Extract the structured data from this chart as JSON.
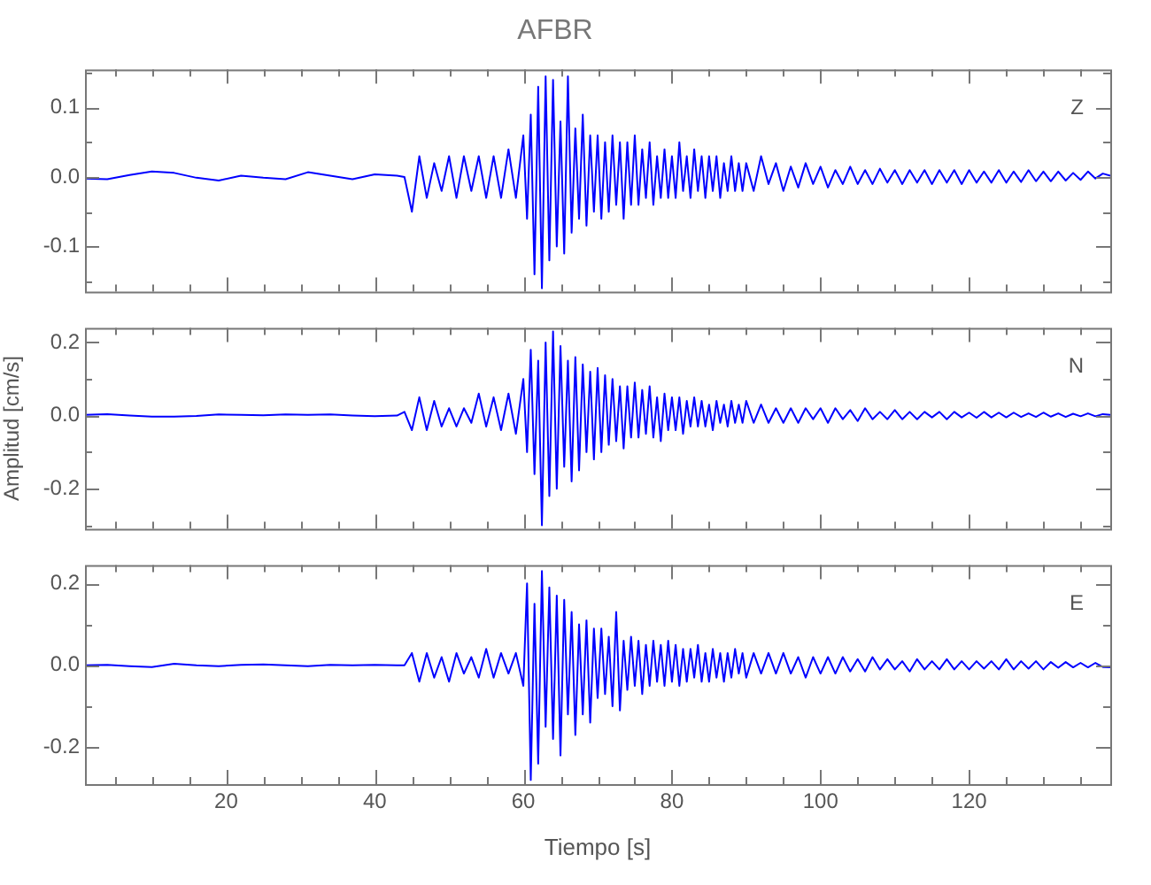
{
  "chart_data": [
    {
      "type": "line",
      "title": "AFBR",
      "annotations": [
        "Z"
      ],
      "color": "#0000ff",
      "marker": "none",
      "grid": false,
      "legend": false,
      "tick_labels": "y",
      "x": [
        1,
        4,
        7,
        10,
        13,
        16,
        19,
        22,
        25,
        28,
        31,
        34,
        37,
        40,
        43,
        44,
        45,
        46,
        47,
        48,
        49,
        50,
        51,
        52,
        53,
        54,
        55,
        56,
        57,
        58,
        59,
        60,
        60.5,
        61,
        61.5,
        62,
        62.5,
        63,
        63.5,
        64,
        64.5,
        65,
        65.5,
        66,
        66.5,
        67,
        67.5,
        68,
        68.5,
        69,
        69.5,
        70,
        70.5,
        71,
        71.5,
        72,
        72.5,
        73,
        73.5,
        74,
        74.5,
        75,
        75.5,
        76,
        76.5,
        77,
        77.5,
        78,
        78.5,
        79,
        79.5,
        80,
        80.5,
        81,
        81.5,
        82,
        82.5,
        83,
        83.5,
        84,
        84.5,
        85,
        85.5,
        86,
        86.5,
        87,
        87.5,
        88,
        88.5,
        89,
        89.5,
        90,
        91,
        92,
        93,
        94,
        95,
        96,
        97,
        98,
        99,
        100,
        101,
        102,
        103,
        104,
        105,
        106,
        107,
        108,
        109,
        110,
        111,
        112,
        113,
        114,
        115,
        116,
        117,
        118,
        119,
        120,
        121,
        122,
        123,
        124,
        125,
        126,
        127,
        128,
        129,
        130,
        131,
        132,
        133,
        134,
        135,
        136,
        137,
        138,
        139
      ],
      "values": [
        -0.002,
        -0.003,
        0.003,
        0.008,
        0.006,
        -0.001,
        -0.005,
        0.002,
        -0.001,
        -0.003,
        0.007,
        0.002,
        -0.003,
        0.004,
        0.002,
        0.0,
        -0.05,
        0.03,
        -0.03,
        0.02,
        -0.02,
        0.03,
        -0.03,
        0.03,
        -0.02,
        0.03,
        -0.03,
        0.03,
        -0.03,
        0.04,
        -0.03,
        0.06,
        -0.06,
        0.09,
        -0.14,
        0.13,
        -0.16,
        0.145,
        -0.12,
        0.14,
        -0.1,
        0.08,
        -0.11,
        0.145,
        -0.08,
        0.07,
        -0.06,
        0.09,
        -0.07,
        0.06,
        -0.05,
        0.06,
        -0.06,
        0.05,
        -0.05,
        0.06,
        -0.04,
        0.05,
        -0.06,
        0.05,
        -0.04,
        0.06,
        -0.04,
        0.04,
        -0.03,
        0.05,
        -0.04,
        0.03,
        -0.03,
        0.04,
        -0.03,
        0.03,
        -0.03,
        0.05,
        -0.02,
        0.03,
        -0.03,
        0.04,
        -0.02,
        0.03,
        -0.03,
        0.03,
        -0.02,
        0.03,
        -0.03,
        0.02,
        -0.02,
        0.03,
        -0.02,
        0.02,
        -0.02,
        0.02,
        -0.02,
        0.03,
        -0.01,
        0.02,
        -0.02,
        0.015,
        -0.015,
        0.02,
        -0.01,
        0.015,
        -0.015,
        0.01,
        -0.01,
        0.015,
        -0.01,
        0.01,
        -0.01,
        0.012,
        -0.008,
        0.01,
        -0.01,
        0.01,
        -0.008,
        0.01,
        -0.01,
        0.01,
        -0.008,
        0.01,
        -0.01,
        0.01,
        -0.008,
        0.008,
        -0.008,
        0.01,
        -0.008,
        0.008,
        -0.007,
        0.01,
        -0.006,
        0.008,
        -0.006,
        0.008,
        -0.005,
        0.006,
        -0.004,
        0.008,
        -0.002,
        0.005,
        0.002
      ],
      "xlim": [
        1,
        139
      ],
      "xticks": [
        {
          "value": 5,
          "label": null
        },
        {
          "value": 10,
          "label": null
        },
        {
          "value": 15,
          "label": null
        },
        20,
        {
          "value": 25,
          "label": null
        },
        {
          "value": 30,
          "label": null
        },
        {
          "value": 35,
          "label": null
        },
        40,
        {
          "value": 45,
          "label": null
        },
        {
          "value": 50,
          "label": null
        },
        {
          "value": 55,
          "label": null
        },
        60,
        {
          "value": 65,
          "label": null
        },
        {
          "value": 70,
          "label": null
        },
        {
          "value": 75,
          "label": null
        },
        80,
        {
          "value": 85,
          "label": null
        },
        {
          "value": 90,
          "label": null
        },
        {
          "value": 95,
          "label": null
        },
        100,
        {
          "value": 105,
          "label": null
        },
        {
          "value": 110,
          "label": null
        },
        {
          "value": 115,
          "label": null
        },
        120,
        {
          "value": 125,
          "label": null
        },
        {
          "value": 130,
          "label": null
        },
        {
          "value": 135,
          "label": null
        }
      ],
      "ylim": [
        -0.165,
        0.155
      ],
      "yticks": [
        {
          "value": -0.15,
          "label": null
        },
        -0.1,
        {
          "value": -0.05,
          "label": null
        },
        {
          "value": 0,
          "label": "0.0"
        },
        {
          "value": 0.05,
          "label": null
        },
        0.1,
        {
          "value": 0.15,
          "label": null
        }
      ]
    },
    {
      "type": "line",
      "ylabel": "Amplitud [cm/s]",
      "annotations": [
        "N"
      ],
      "color": "#0000ff",
      "marker": "none",
      "grid": false,
      "legend": false,
      "tick_labels": "y",
      "x": [
        1,
        4,
        7,
        10,
        13,
        16,
        19,
        22,
        25,
        28,
        31,
        34,
        37,
        40,
        43,
        44,
        45,
        46,
        47,
        48,
        49,
        50,
        51,
        52,
        53,
        54,
        55,
        56,
        57,
        58,
        59,
        60,
        60.5,
        61,
        61.5,
        62,
        62.5,
        63,
        63.5,
        64,
        64.5,
        65,
        65.5,
        66,
        66.5,
        67,
        67.5,
        68,
        68.5,
        69,
        69.5,
        70,
        70.5,
        71,
        71.5,
        72,
        72.5,
        73,
        73.5,
        74,
        74.5,
        75,
        75.5,
        76,
        76.5,
        77,
        77.5,
        78,
        78.5,
        79,
        79.5,
        80,
        80.5,
        81,
        81.5,
        82,
        82.5,
        83,
        83.5,
        84,
        84.5,
        85,
        85.5,
        86,
        86.5,
        87,
        87.5,
        88,
        88.5,
        89,
        89.5,
        90,
        91,
        92,
        93,
        94,
        95,
        96,
        97,
        98,
        99,
        100,
        101,
        102,
        103,
        104,
        105,
        106,
        107,
        108,
        109,
        110,
        111,
        112,
        113,
        114,
        115,
        116,
        117,
        118,
        119,
        120,
        121,
        122,
        123,
        124,
        125,
        126,
        127,
        128,
        129,
        130,
        131,
        132,
        133,
        134,
        135,
        136,
        137,
        138,
        139
      ],
      "values": [
        0.002,
        0.004,
        0.0,
        -0.003,
        -0.003,
        -0.001,
        0.003,
        0.002,
        0.001,
        0.003,
        0.002,
        0.003,
        0.0,
        -0.002,
        0.0,
        0.01,
        -0.04,
        0.05,
        -0.04,
        0.04,
        -0.03,
        0.02,
        -0.03,
        0.02,
        -0.02,
        0.06,
        -0.03,
        0.05,
        -0.04,
        0.06,
        -0.05,
        0.1,
        -0.1,
        0.18,
        -0.16,
        0.15,
        -0.3,
        0.2,
        -0.22,
        0.23,
        -0.2,
        0.19,
        -0.14,
        0.15,
        -0.18,
        0.16,
        -0.15,
        0.14,
        -0.1,
        0.12,
        -0.12,
        0.13,
        -0.1,
        0.11,
        -0.08,
        0.1,
        -0.07,
        0.08,
        -0.09,
        0.08,
        -0.06,
        0.09,
        -0.06,
        0.07,
        -0.05,
        0.08,
        -0.06,
        0.05,
        -0.07,
        0.06,
        -0.04,
        0.05,
        -0.04,
        0.05,
        -0.05,
        0.04,
        -0.03,
        0.05,
        -0.03,
        0.04,
        -0.03,
        0.03,
        -0.04,
        0.04,
        -0.02,
        0.03,
        -0.03,
        0.04,
        -0.02,
        0.03,
        -0.02,
        0.04,
        -0.02,
        0.03,
        -0.02,
        0.02,
        -0.02,
        0.02,
        -0.02,
        0.02,
        -0.01,
        0.02,
        -0.02,
        0.02,
        -0.01,
        0.015,
        -0.015,
        0.02,
        -0.01,
        0.01,
        -0.01,
        0.015,
        -0.01,
        0.01,
        -0.01,
        0.01,
        -0.005,
        0.01,
        -0.01,
        0.01,
        -0.005,
        0.008,
        -0.006,
        0.01,
        -0.005,
        0.008,
        -0.005,
        0.008,
        -0.004,
        0.006,
        -0.004,
        0.008,
        -0.003,
        0.006,
        -0.004,
        0.005,
        -0.002,
        0.006,
        -0.002,
        0.004,
        0.002
      ],
      "xlim": [
        1,
        139
      ],
      "xticks": [
        {
          "value": 5,
          "label": null
        },
        {
          "value": 10,
          "label": null
        },
        {
          "value": 15,
          "label": null
        },
        20,
        {
          "value": 25,
          "label": null
        },
        {
          "value": 30,
          "label": null
        },
        {
          "value": 35,
          "label": null
        },
        40,
        {
          "value": 45,
          "label": null
        },
        {
          "value": 50,
          "label": null
        },
        {
          "value": 55,
          "label": null
        },
        60,
        {
          "value": 65,
          "label": null
        },
        {
          "value": 70,
          "label": null
        },
        {
          "value": 75,
          "label": null
        },
        80,
        {
          "value": 85,
          "label": null
        },
        {
          "value": 90,
          "label": null
        },
        {
          "value": 95,
          "label": null
        },
        100,
        {
          "value": 105,
          "label": null
        },
        {
          "value": 110,
          "label": null
        },
        {
          "value": 115,
          "label": null
        },
        120,
        {
          "value": 125,
          "label": null
        },
        {
          "value": 130,
          "label": null
        },
        {
          "value": 135,
          "label": null
        }
      ],
      "ylim": [
        -0.31,
        0.24
      ],
      "yticks": [
        {
          "value": -0.3,
          "label": null
        },
        -0.2,
        {
          "value": -0.1,
          "label": null
        },
        {
          "value": 0,
          "label": "0.0"
        },
        {
          "value": 0.1,
          "label": null
        },
        0.2
      ]
    },
    {
      "type": "line",
      "xlabel": "Tiempo [s]",
      "annotations": [
        "E"
      ],
      "color": "#0000ff",
      "marker": "none",
      "grid": false,
      "legend": false,
      "x": [
        1,
        4,
        7,
        10,
        13,
        16,
        19,
        22,
        25,
        28,
        31,
        34,
        37,
        40,
        43,
        44,
        45,
        46,
        47,
        48,
        49,
        50,
        51,
        52,
        53,
        54,
        55,
        56,
        57,
        58,
        59,
        60,
        60.5,
        61,
        61.5,
        62,
        62.5,
        63,
        63.5,
        64,
        64.5,
        65,
        65.5,
        66,
        66.5,
        67,
        67.5,
        68,
        68.5,
        69,
        69.5,
        70,
        70.5,
        71,
        71.5,
        72,
        72.5,
        73,
        73.5,
        74,
        74.5,
        75,
        75.5,
        76,
        76.5,
        77,
        77.5,
        78,
        78.5,
        79,
        79.5,
        80,
        80.5,
        81,
        81.5,
        82,
        82.5,
        83,
        83.5,
        84,
        84.5,
        85,
        85.5,
        86,
        86.5,
        87,
        87.5,
        88,
        88.5,
        89,
        89.5,
        90,
        91,
        92,
        93,
        94,
        95,
        96,
        97,
        98,
        99,
        100,
        101,
        102,
        103,
        104,
        105,
        106,
        107,
        108,
        109,
        110,
        111,
        112,
        113,
        114,
        115,
        116,
        117,
        118,
        119,
        120,
        121,
        122,
        123,
        124,
        125,
        126,
        127,
        128,
        129,
        130,
        131,
        132,
        133,
        134,
        135,
        136,
        137,
        138,
        139
      ],
      "values": [
        0.0,
        0.001,
        -0.002,
        -0.004,
        0.004,
        0.0,
        -0.002,
        0.001,
        0.002,
        0.0,
        -0.002,
        0.001,
        0.0,
        0.001,
        0.0,
        0.0,
        0.03,
        -0.04,
        0.03,
        -0.03,
        0.02,
        -0.04,
        0.03,
        -0.02,
        0.02,
        -0.03,
        0.04,
        -0.03,
        0.03,
        -0.02,
        0.03,
        -0.05,
        0.2,
        -0.28,
        0.15,
        -0.24,
        0.23,
        -0.15,
        0.19,
        -0.18,
        0.17,
        -0.22,
        0.16,
        -0.12,
        0.13,
        -0.17,
        0.1,
        -0.12,
        0.11,
        -0.14,
        0.09,
        -0.08,
        0.09,
        -0.07,
        0.07,
        -0.1,
        0.13,
        -0.11,
        0.06,
        -0.06,
        0.07,
        -0.05,
        0.06,
        -0.07,
        0.05,
        -0.05,
        0.06,
        -0.04,
        0.05,
        -0.05,
        0.06,
        -0.04,
        0.05,
        -0.05,
        0.04,
        -0.04,
        0.04,
        -0.03,
        0.05,
        -0.04,
        0.03,
        -0.04,
        0.04,
        -0.03,
        0.03,
        -0.04,
        0.03,
        -0.03,
        0.04,
        -0.02,
        0.03,
        -0.03,
        0.03,
        -0.02,
        0.03,
        -0.02,
        0.03,
        -0.02,
        0.02,
        -0.03,
        0.02,
        -0.02,
        0.02,
        -0.02,
        0.02,
        -0.015,
        0.015,
        -0.015,
        0.02,
        -0.01,
        0.015,
        -0.01,
        0.01,
        -0.015,
        0.015,
        -0.01,
        0.01,
        -0.01,
        0.015,
        -0.01,
        0.01,
        -0.01,
        0.01,
        -0.008,
        0.01,
        -0.01,
        0.015,
        -0.01,
        0.01,
        -0.008,
        0.01,
        -0.01,
        0.008,
        -0.006,
        0.008,
        -0.005,
        0.006,
        -0.005,
        0.006,
        -0.004,
        -0.005
      ],
      "xlim": [
        1,
        139
      ],
      "xticks": [
        {
          "value": 5,
          "label": null
        },
        {
          "value": 10,
          "label": null
        },
        {
          "value": 15,
          "label": null
        },
        20,
        {
          "value": 25,
          "label": null
        },
        {
          "value": 30,
          "label": null
        },
        {
          "value": 35,
          "label": null
        },
        40,
        {
          "value": 45,
          "label": null
        },
        {
          "value": 50,
          "label": null
        },
        {
          "value": 55,
          "label": null
        },
        60,
        {
          "value": 65,
          "label": null
        },
        {
          "value": 70,
          "label": null
        },
        {
          "value": 75,
          "label": null
        },
        80,
        {
          "value": 85,
          "label": null
        },
        {
          "value": 90,
          "label": null
        },
        {
          "value": 95,
          "label": null
        },
        100,
        {
          "value": 105,
          "label": null
        },
        {
          "value": 110,
          "label": null
        },
        {
          "value": 115,
          "label": null
        },
        120,
        {
          "value": 125,
          "label": null
        },
        {
          "value": 130,
          "label": null
        },
        {
          "value": 135,
          "label": null
        }
      ],
      "ylim": [
        -0.29,
        0.245
      ],
      "yticks": [
        -0.2,
        {
          "value": -0.1,
          "label": null
        },
        {
          "value": 0,
          "label": "0.0"
        },
        {
          "value": 0.1,
          "label": null
        },
        0.2
      ]
    }
  ]
}
